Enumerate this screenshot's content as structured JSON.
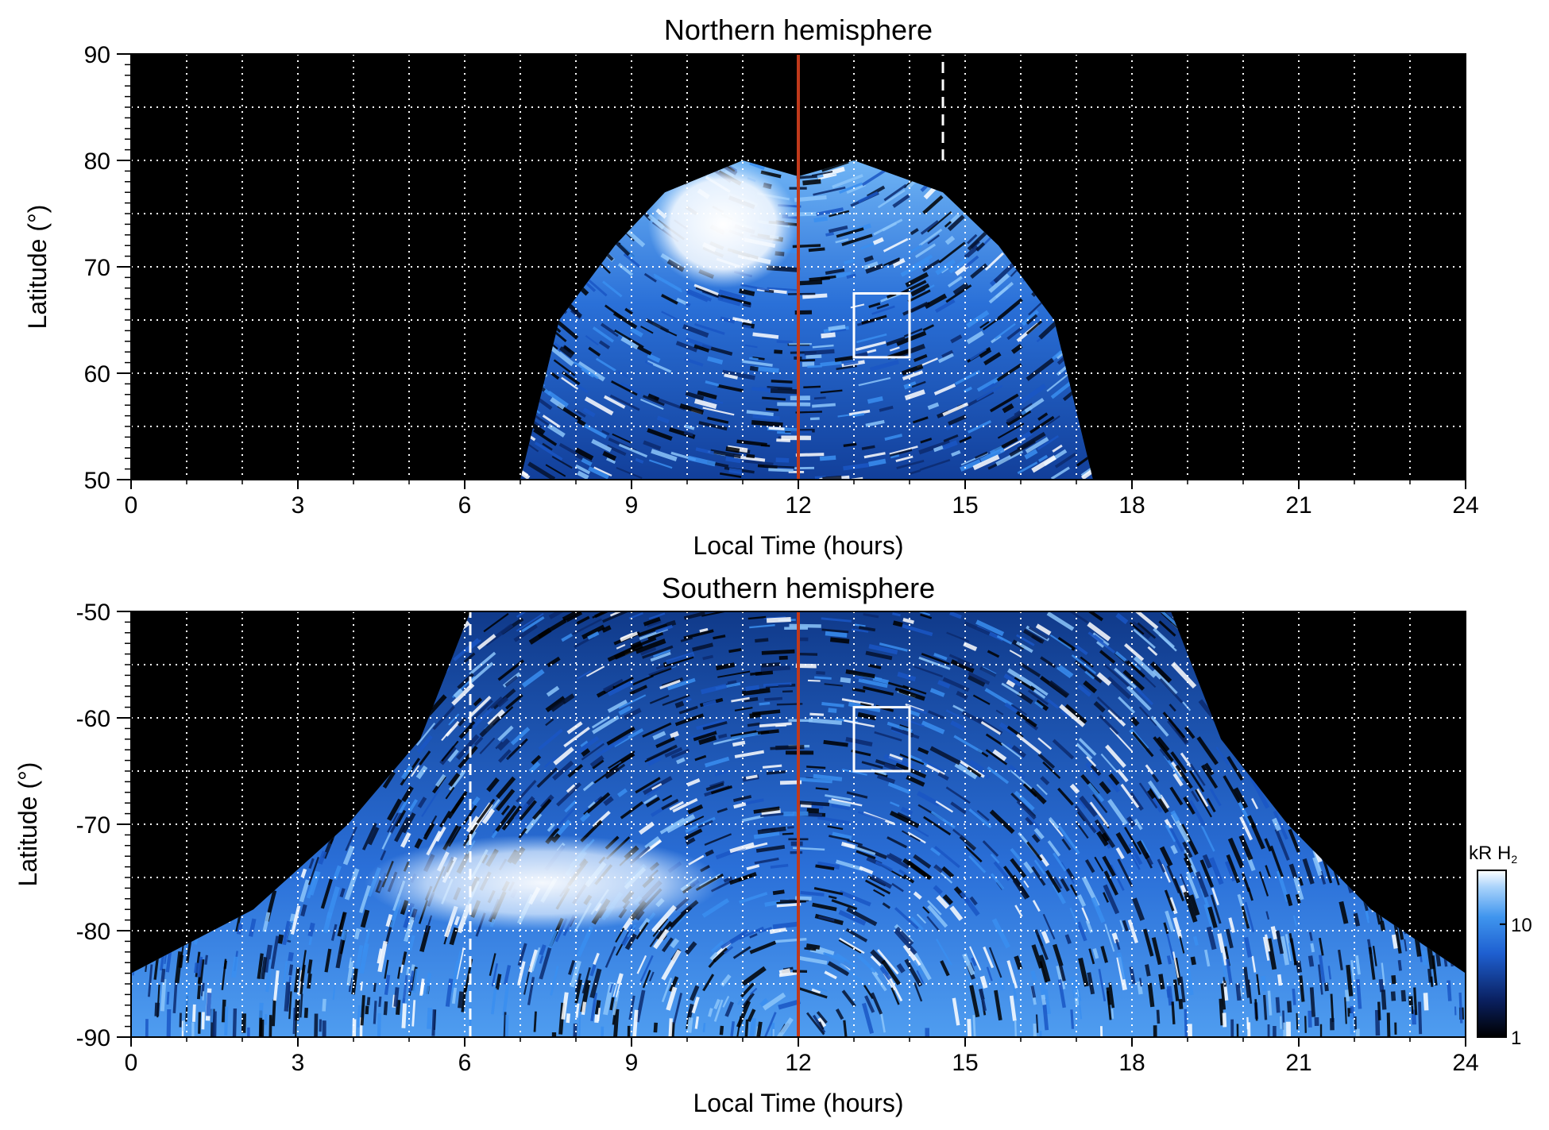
{
  "chart_data": [
    {
      "type": "heatmap",
      "title": "Northern hemisphere",
      "xlabel": "Local Time (hours)",
      "ylabel": "Latitude (°)",
      "xlim": [
        0,
        24
      ],
      "ylim": [
        50,
        90
      ],
      "xticks": [
        "0",
        "3",
        "6",
        "9",
        "12",
        "15",
        "18",
        "21",
        "24"
      ],
      "yticks": [
        "50",
        "60",
        "70",
        "80",
        "90"
      ],
      "grid": true,
      "emission_footprint": {
        "lt_at_50": [
          7.0,
          17.3
        ],
        "lt_at_65": [
          7.7,
          16.6
        ],
        "lt_at_72": [
          8.7,
          15.6
        ],
        "lt_at_77": [
          9.6,
          14.6
        ],
        "top_latitude": 80
      },
      "bright_region": {
        "lt": [
          9.3,
          12.0
        ],
        "lat": [
          68,
          80
        ]
      },
      "noon_line_lt": 12,
      "dashed_line": {
        "lt": 14.6,
        "lat": [
          80,
          90
        ]
      },
      "box": {
        "lt": [
          13.0,
          14.0
        ],
        "lat": [
          61.5,
          67.5
        ]
      }
    },
    {
      "type": "heatmap",
      "title": "Southern hemisphere",
      "xlabel": "Local Time (hours)",
      "ylabel": "Latitude (°)",
      "xlim": [
        0,
        24
      ],
      "ylim": [
        -90,
        -50
      ],
      "xticks": [
        "0",
        "3",
        "6",
        "9",
        "12",
        "15",
        "18",
        "21",
        "24"
      ],
      "yticks": [
        "-90",
        "-80",
        "-70",
        "-60",
        "-50"
      ],
      "grid": true,
      "emission_footprint": {
        "lt_at_-50": [
          6.1,
          18.7
        ],
        "lt_at_-62": [
          5.2,
          19.6
        ],
        "lt_at_-70": [
          3.9,
          20.8
        ],
        "lt_at_-78": [
          2.2,
          22.3
        ],
        "lt_at_-84": [
          0,
          24
        ]
      },
      "bright_region": {
        "lt": [
          4.2,
          10.6
        ],
        "lat": [
          -80,
          -71
        ]
      },
      "noon_line_lt": 12,
      "dashed_line": {
        "lt": 6.1,
        "lat": [
          -90,
          -50
        ]
      },
      "box": {
        "lt": [
          13.0,
          14.0
        ],
        "lat": [
          -65,
          -59
        ]
      }
    }
  ],
  "colorbar": {
    "label": "kR H",
    "label_subscript": "2",
    "ticks": [
      {
        "label": "1",
        "value": 1
      },
      {
        "label": "10",
        "value": 10
      }
    ],
    "range": [
      1,
      30
    ],
    "scale": "log",
    "colors": [
      "#000000",
      "#0a2060",
      "#1e5fd0",
      "#3f95ee",
      "#a9d3fb",
      "#ffffff"
    ]
  },
  "colors": {
    "noon_line": "#c0391b",
    "grid": "#ffffff",
    "background": "#000000"
  }
}
